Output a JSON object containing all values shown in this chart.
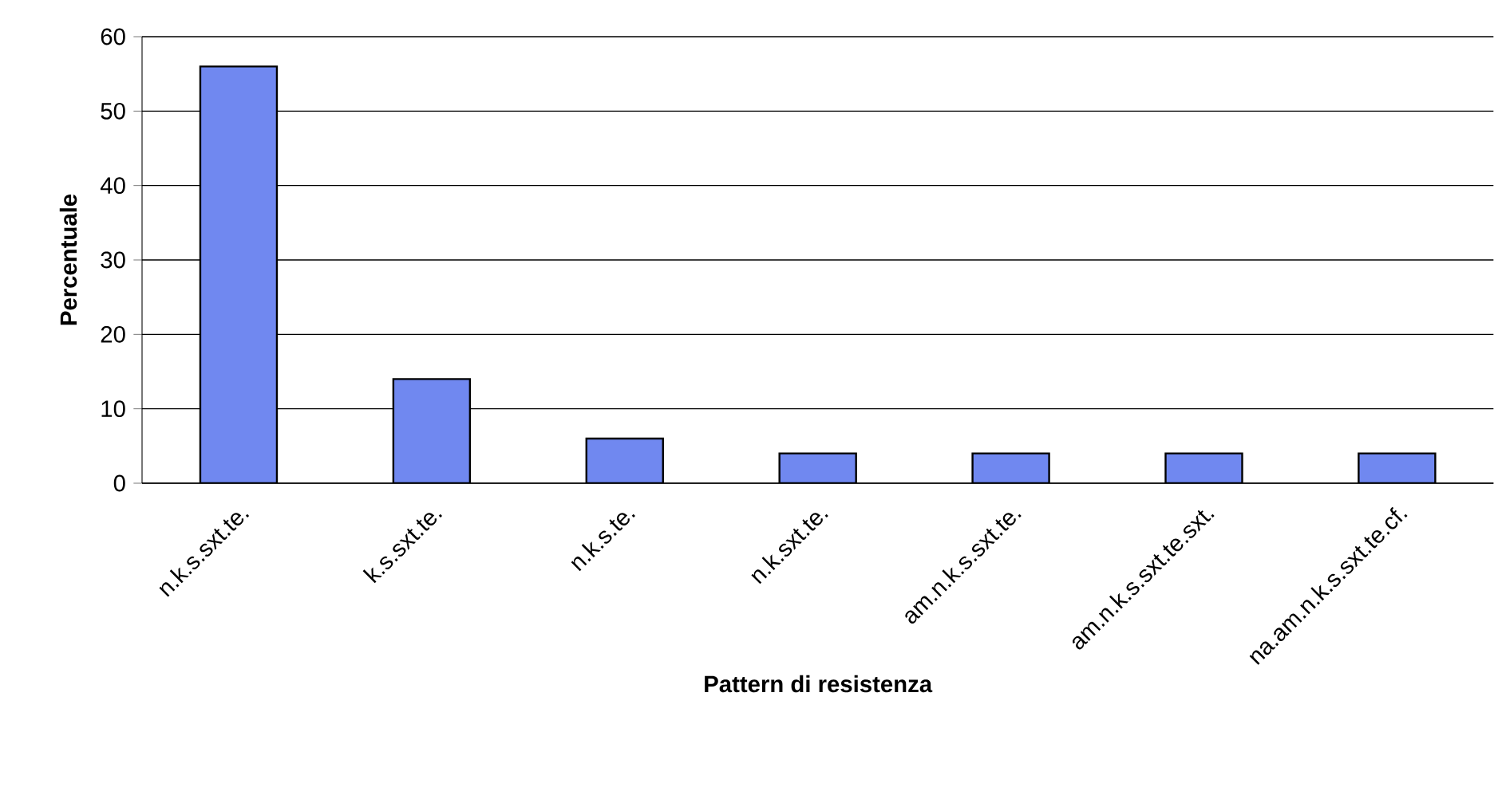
{
  "chart_data": {
    "type": "bar",
    "xlabel": "Pattern di resistenza",
    "ylabel": "Percentuale",
    "categories": [
      "n.k.s.sxt.te.",
      "k.s.sxt.te.",
      "n.k.s.te.",
      "n.k.sxt.te.",
      "am.n.k.s.sxt.te.",
      "am.n.k.s.sxt.te.sxt.",
      "na.am.n.k.s.sxt.te.cf."
    ],
    "values": [
      56,
      14,
      6,
      4,
      4,
      4,
      4
    ],
    "color": "#7088f0",
    "ylim": [
      0,
      60
    ],
    "yticks": [
      0,
      10,
      20,
      30,
      40,
      50,
      60
    ],
    "grid": "y"
  }
}
